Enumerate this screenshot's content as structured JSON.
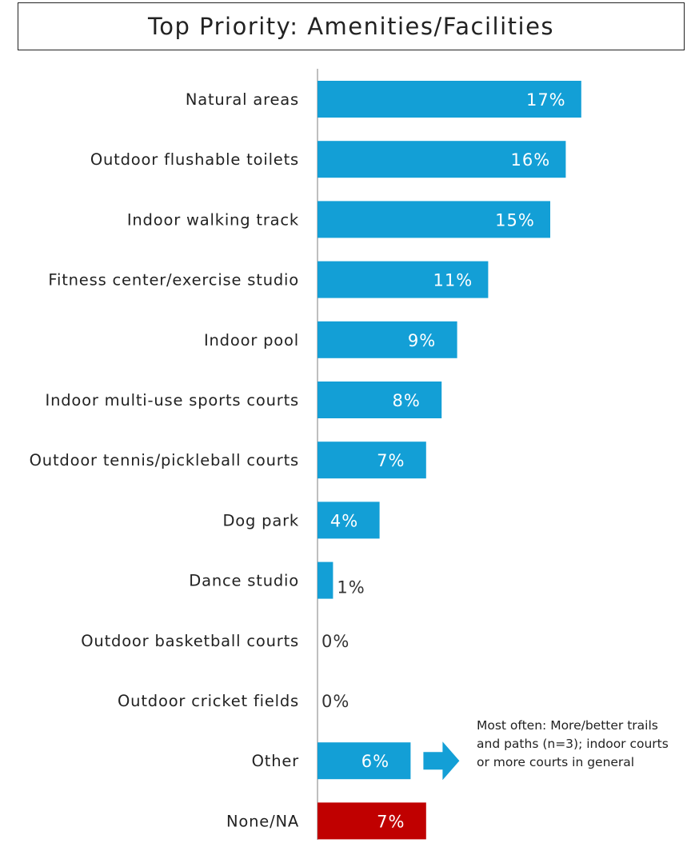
{
  "colors": {
    "bar": "#139fd6",
    "none_bar": "#c00000",
    "axis": "#bfbfbf",
    "arrow": "#139fd6"
  },
  "chart_data": {
    "type": "bar",
    "orientation": "horizontal",
    "title": "Top Priority:  Amenities/Facilities",
    "categories": [
      "Natural areas",
      "Outdoor flushable toilets",
      "Indoor walking track",
      "Fitness center/exercise studio",
      "Indoor pool",
      "Indoor multi-use sports courts",
      "Outdoor tennis/pickleball courts",
      "Dog park",
      "Dance studio",
      "Outdoor basketball courts",
      "Outdoor cricket fields",
      "Other",
      "None/NA"
    ],
    "values": [
      17,
      16,
      15,
      11,
      9,
      8,
      7,
      4,
      1,
      0,
      0,
      6,
      7
    ],
    "value_labels": [
      "17%",
      "16%",
      "15%",
      "11%",
      "9%",
      "8%",
      "7%",
      "4%",
      "1%",
      "0%",
      "0%",
      "6%",
      "7%"
    ],
    "grid": false,
    "legend": "none"
  },
  "note": {
    "lines": [
      "Most often:  More/better trails",
      "and paths (n=3); indoor courts",
      "or more courts in general"
    ]
  }
}
